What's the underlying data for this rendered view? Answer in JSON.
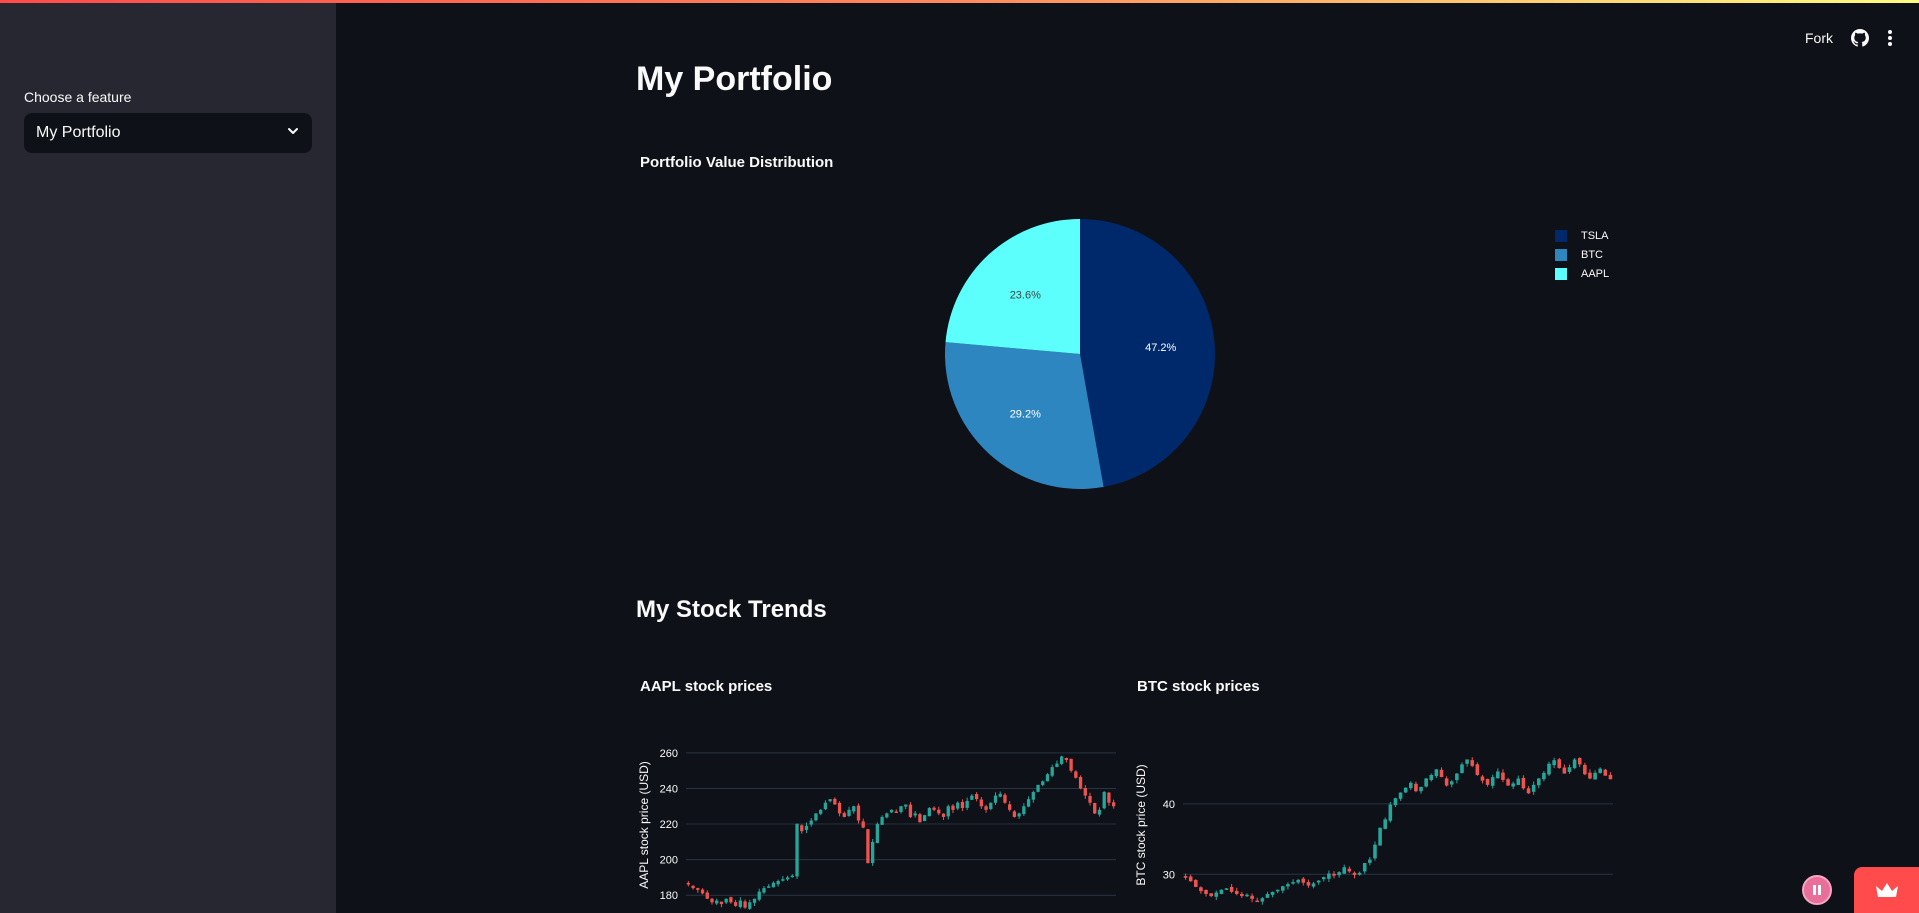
{
  "sidebar": {
    "select_label": "Choose a feature",
    "select_value": "My Portfolio"
  },
  "header": {
    "fork_label": "Fork",
    "github_icon": "github-icon",
    "menu_icon": "kebab-menu-icon"
  },
  "main": {
    "page_title": "My Portfolio",
    "section_title": "My Stock Trends"
  },
  "chart_data": [
    {
      "type": "pie",
      "title": "Portfolio Value Distribution",
      "labels": [
        "TSLA",
        "BTC",
        "AAPL"
      ],
      "values": [
        47.2,
        29.2,
        23.6
      ],
      "colors": [
        "#00296b",
        "#2e86c1",
        "#5cfffc"
      ],
      "legend": "top-right"
    },
    {
      "type": "candlestick",
      "title": "AAPL stock prices",
      "ylabel": "AAPL stock price (USD)",
      "yticks": [
        180,
        200,
        220,
        240,
        260
      ],
      "ylim": [
        170,
        265
      ],
      "close": [
        186,
        184,
        183,
        181,
        178,
        176,
        177,
        175,
        178,
        176,
        174,
        177,
        173,
        176,
        178,
        182,
        184,
        185,
        187,
        188,
        189,
        190,
        191,
        220,
        216,
        219,
        222,
        226,
        228,
        232,
        234,
        231,
        226,
        224,
        228,
        230,
        222,
        218,
        198,
        210,
        220,
        224,
        226,
        228,
        227,
        230,
        231,
        224,
        226,
        221,
        225,
        229,
        228,
        226,
        224,
        230,
        228,
        232,
        229,
        233,
        236,
        234,
        230,
        228,
        232,
        236,
        237,
        232,
        228,
        224,
        226,
        230,
        234,
        238,
        242,
        244,
        248,
        252,
        254,
        258,
        256,
        250,
        246,
        240,
        236,
        232,
        226,
        228,
        238,
        232,
        230
      ],
      "increasing_color": "#26a69a",
      "decreasing_color": "#ef5350"
    },
    {
      "type": "candlestick",
      "title": "BTC stock prices",
      "ylabel": "BTC stock price (USD)",
      "yticks": [
        30,
        40
      ],
      "ylim": [
        24.5,
        48.5
      ],
      "close": [
        29.5,
        29.0,
        28.2,
        27.6,
        27.2,
        26.9,
        27.4,
        27.8,
        28.0,
        27.5,
        27.2,
        26.9,
        27.1,
        26.5,
        26.2,
        26.6,
        27.2,
        27.5,
        27.8,
        28.3,
        28.6,
        28.9,
        29.2,
        28.8,
        28.4,
        28.7,
        29.1,
        29.6,
        30.1,
        29.8,
        30.3,
        31.0,
        30.4,
        29.9,
        30.2,
        31.6,
        32.1,
        34.2,
        36.6,
        37.8,
        39.9,
        40.8,
        41.6,
        42.3,
        43.0,
        41.8,
        42.4,
        43.6,
        44.1,
        44.9,
        43.8,
        42.6,
        43.2,
        44.3,
        45.6,
        46.3,
        45.4,
        44.1,
        43.3,
        42.7,
        43.8,
        44.6,
        43.4,
        42.6,
        42.9,
        43.6,
        42.2,
        41.5,
        42.7,
        43.6,
        44.4,
        45.7,
        46.2,
        45.1,
        44.3,
        45.2,
        46.3,
        45.6,
        44.2,
        43.6,
        44.4,
        45.0,
        44.0,
        43.5
      ]
    }
  ]
}
